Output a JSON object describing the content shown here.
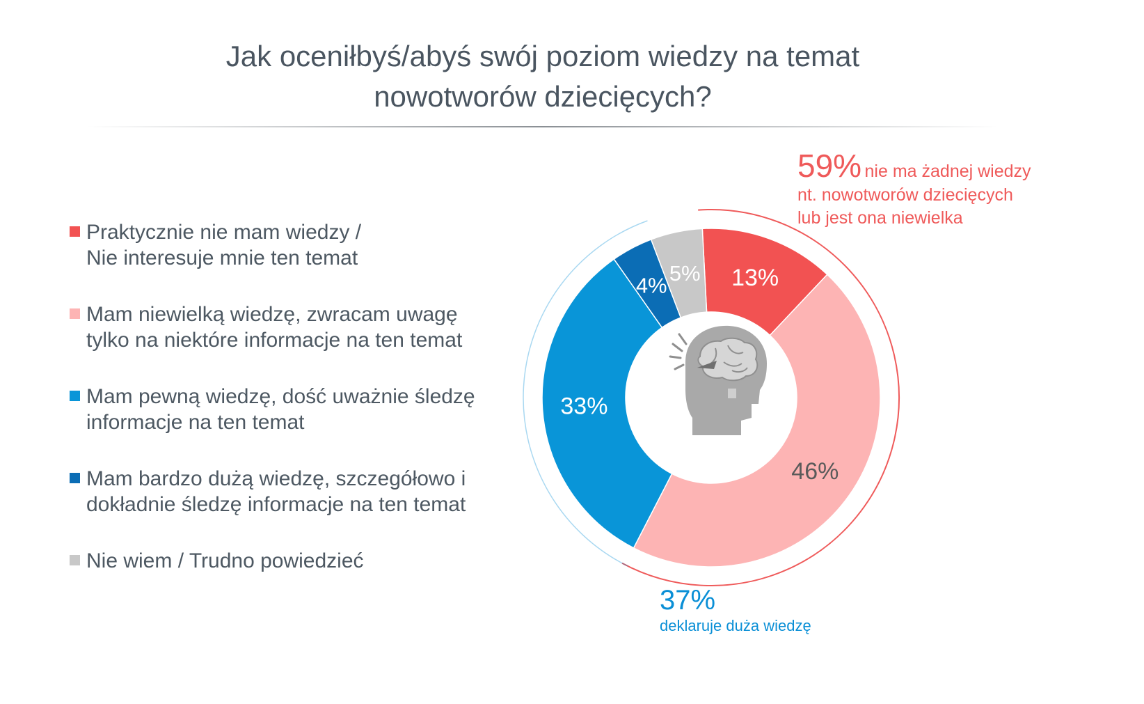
{
  "title": {
    "line1": "Jak oceniłbyś/abyś swój poziom wiedzy na temat",
    "line2": "nowotworów dziecięcych?"
  },
  "legend": [
    {
      "color": "#f25252",
      "lines": [
        "Praktycznie nie mam wiedzy /",
        "Nie interesuje mnie ten temat"
      ]
    },
    {
      "color": "#fdb4b4",
      "lines": [
        "Mam niewielką wiedzę, zwracam uwagę",
        "tylko na niektóre informacje na ten temat"
      ]
    },
    {
      "color": "#0995d8",
      "lines": [
        "Mam pewną wiedzę, dość uważnie śledzę",
        "informacje na ten temat"
      ]
    },
    {
      "color": "#0b6db5",
      "lines": [
        "Mam bardzo dużą wiedzę, szczegółowo i",
        "dokładnie śledzę informacje na ten temat"
      ]
    },
    {
      "color": "#c8c8c8",
      "lines": [
        "Nie wiem / Trudno powiedzieć"
      ]
    }
  ],
  "callouts": {
    "red": {
      "value": "59%",
      "line1": "nie ma żadnej wiedzy",
      "line2": "nt. nowotworów dziecięcych",
      "line3": "lub jest ona niewielka",
      "color": "#ef5a5a"
    },
    "blue": {
      "value": "37%",
      "line1": "deklaruje duża wiedzę",
      "color": "#0a8fd6"
    }
  },
  "center_icon": "head-brain-icon",
  "chart_data": {
    "type": "pie",
    "variant": "donut",
    "slices": [
      {
        "label": "Praktycznie nie mam wiedzy / Nie interesuje mnie ten temat",
        "value": 13,
        "display": "13%",
        "color": "#f25252",
        "text_color": "#ffffff"
      },
      {
        "label": "Mam niewielką wiedzę, zwracam uwagę tylko na niektóre informacje na ten temat",
        "value": 46,
        "display": "46%",
        "color": "#fdb4b4",
        "text_color": "#5a5a5a"
      },
      {
        "label": "Mam pewną wiedzę, dość uważnie śledzę informacje na ten temat",
        "value": 33,
        "display": "33%",
        "color": "#0995d8",
        "text_color": "#ffffff"
      },
      {
        "label": "Mam bardzo dużą wiedzę, szczegółowo i dokładnie śledzę informacje na ten temat",
        "value": 4,
        "display": "4%",
        "color": "#0b6db5",
        "text_color": "#ffffff"
      },
      {
        "label": "Nie wiem / Trudno powiedzieć",
        "value": 5,
        "display": "5%",
        "color": "#c8c8c8",
        "text_color": "#ffffff"
      }
    ],
    "start_angle_deg": -3,
    "groups": [
      {
        "name": "59%",
        "slices": [
          0,
          1
        ],
        "color": "#ef5a5a"
      },
      {
        "name": "37%",
        "slices": [
          2,
          3
        ],
        "color": "#0a8fd6"
      }
    ]
  }
}
